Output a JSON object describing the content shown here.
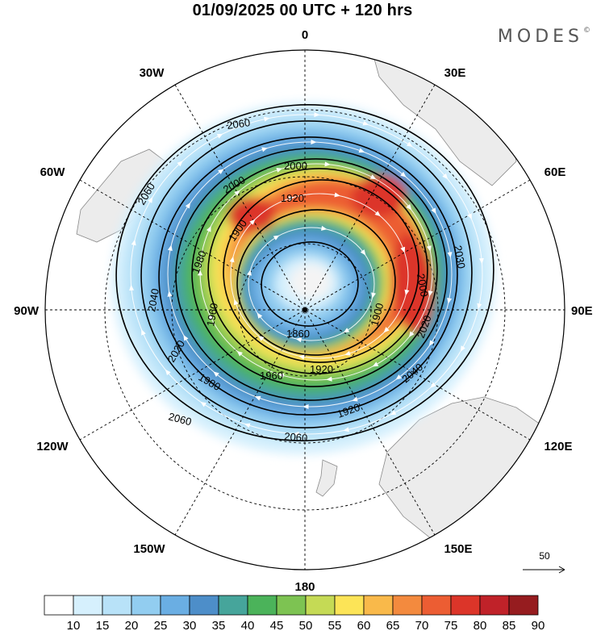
{
  "title": "01/09/2025  00 UTC  + 120 hrs",
  "brand": {
    "name": "MODES",
    "mark": "©"
  },
  "map": {
    "projection": "polar-stereographic-south",
    "longitude_labels": [
      {
        "label": "0",
        "lon": 0
      },
      {
        "label": "30E",
        "lon": 30
      },
      {
        "label": "60E",
        "lon": 60
      },
      {
        "label": "90E",
        "lon": 90
      },
      {
        "label": "120E",
        "lon": 120
      },
      {
        "label": "150E",
        "lon": 150
      },
      {
        "label": "180",
        "lon": 180
      },
      {
        "label": "150W",
        "lon": -150
      },
      {
        "label": "120W",
        "lon": -120
      },
      {
        "label": "90W",
        "lon": -90
      },
      {
        "label": "60W",
        "lon": -60
      },
      {
        "label": "30W",
        "lon": -30
      }
    ],
    "contours": [
      {
        "value": 1860,
        "label": "1860"
      },
      {
        "value": 1900,
        "label": "1900"
      },
      {
        "value": 1920,
        "label": "1920"
      },
      {
        "value": 1960,
        "label": "1960"
      },
      {
        "value": 1980,
        "label": "1980"
      },
      {
        "value": 2000,
        "label": "2000"
      },
      {
        "value": 2020,
        "label": "2020"
      },
      {
        "value": 2040,
        "label": "2040"
      },
      {
        "value": 2060,
        "label": "2060"
      }
    ],
    "contour_labels": [
      "2060",
      "2000",
      "1920",
      "2000",
      "1900",
      "1980",
      "1960",
      "1860",
      "1920",
      "1900",
      "2020",
      "2040",
      "2060",
      "2060",
      "2040",
      "2020",
      "1980",
      "1960",
      "1920",
      "2060",
      "2030",
      "2000"
    ],
    "wind_reference": {
      "label": "50"
    }
  },
  "colorbar": {
    "ticks": [
      "10",
      "15",
      "20",
      "25",
      "30",
      "35",
      "40",
      "45",
      "50",
      "55",
      "60",
      "65",
      "70",
      "75",
      "80",
      "85",
      "90"
    ],
    "colors": [
      "#ffffff",
      "#d6f0fd",
      "#b8e2f8",
      "#92cdf0",
      "#6aaee3",
      "#4d8ec9",
      "#46a59b",
      "#4bb35a",
      "#7dc352",
      "#c5da55",
      "#fce457",
      "#f9b94a",
      "#f38a3e",
      "#ec5d33",
      "#dc3529",
      "#c02229",
      "#961c1f"
    ]
  }
}
